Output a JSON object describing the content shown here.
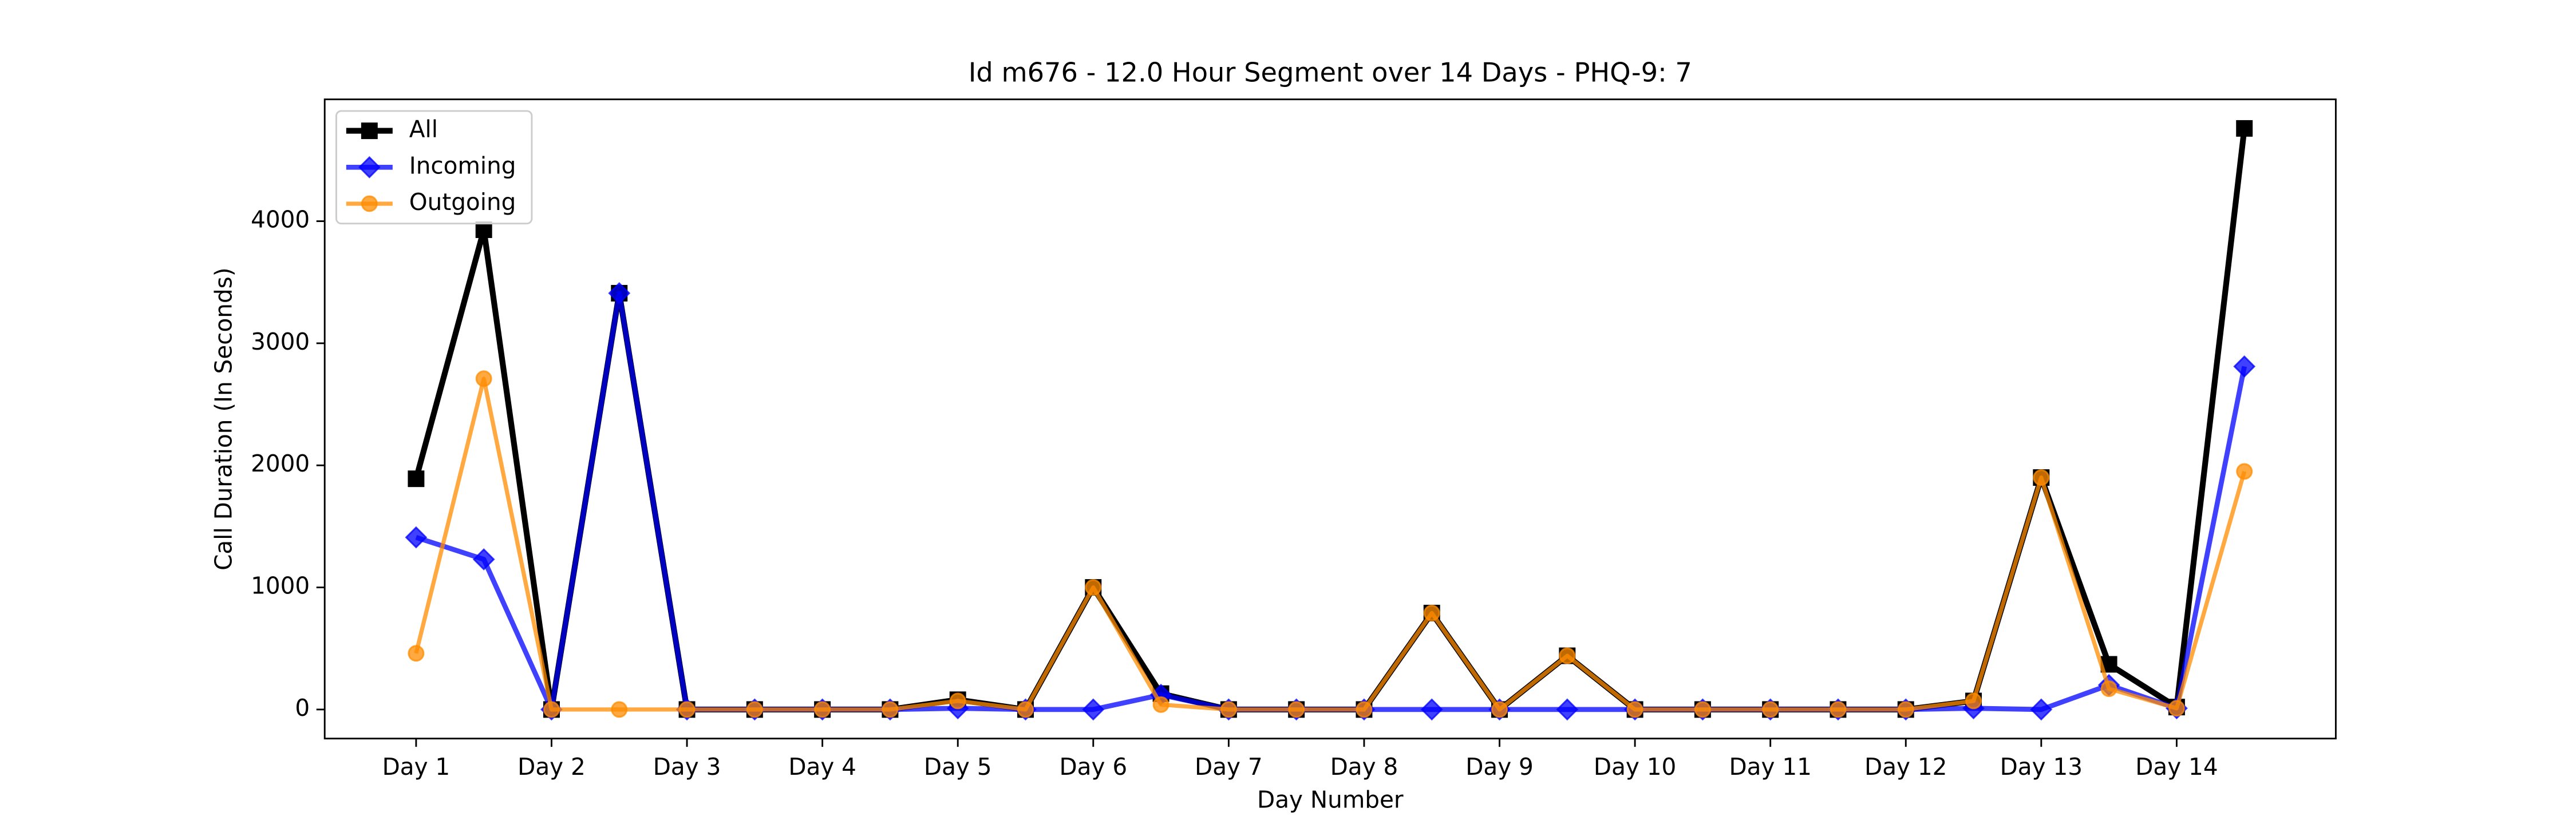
{
  "chart_data": {
    "type": "line",
    "title": "Id m676 - 12.0 Hour Segment over 14 Days - PHQ-9: 7",
    "xlabel": "Day Number",
    "ylabel": "Call Duration (In Seconds)",
    "x": [
      1,
      1.5,
      2,
      2.5,
      3,
      3.5,
      4,
      4.5,
      5,
      5.5,
      6,
      6.5,
      7,
      7.5,
      8,
      8.5,
      9,
      9.5,
      10,
      10.5,
      11,
      11.5,
      12,
      12.5,
      13,
      13.5,
      14,
      14.5
    ],
    "xlim": [
      0.325,
      15.175
    ],
    "xticks": [
      {
        "value": 1,
        "label": "Day 1"
      },
      {
        "value": 2,
        "label": "Day 2"
      },
      {
        "value": 3,
        "label": "Day 3"
      },
      {
        "value": 4,
        "label": "Day 4"
      },
      {
        "value": 5,
        "label": "Day 5"
      },
      {
        "value": 6,
        "label": "Day 6"
      },
      {
        "value": 7,
        "label": "Day 7"
      },
      {
        "value": 8,
        "label": "Day 8"
      },
      {
        "value": 9,
        "label": "Day 9"
      },
      {
        "value": 10,
        "label": "Day 10"
      },
      {
        "value": 11,
        "label": "Day 11"
      },
      {
        "value": 12,
        "label": "Day 12"
      },
      {
        "value": 13,
        "label": "Day 13"
      },
      {
        "value": 14,
        "label": "Day 14"
      }
    ],
    "ylim": [
      -238,
      4998
    ],
    "yticks": [
      0,
      1000,
      2000,
      3000,
      4000
    ],
    "legend": "upper left",
    "series": [
      {
        "name": "All",
        "color": "#000000",
        "alpha": 1,
        "marker": "square",
        "width": 3.5,
        "values": [
          1890,
          3930,
          0,
          3410,
          0,
          0,
          0,
          0,
          80,
          0,
          1000,
          130,
          0,
          0,
          0,
          790,
          0,
          440,
          0,
          0,
          0,
          0,
          0,
          70,
          1900,
          370,
          20,
          4760
        ]
      },
      {
        "name": "Incoming",
        "color": "#0000ff",
        "alpha": 0.75,
        "marker": "diamond",
        "width": 3,
        "values": [
          1410,
          1230,
          0,
          3410,
          0,
          0,
          0,
          0,
          10,
          0,
          0,
          120,
          0,
          0,
          0,
          0,
          0,
          0,
          0,
          0,
          0,
          0,
          0,
          10,
          0,
          200,
          10,
          2810
        ]
      },
      {
        "name": "Outgoing",
        "color": "#ff8c00",
        "alpha": 0.75,
        "marker": "circle",
        "width": 2.5,
        "values": [
          460,
          2710,
          0,
          0,
          0,
          0,
          0,
          0,
          70,
          0,
          1000,
          40,
          0,
          0,
          0,
          790,
          0,
          440,
          0,
          0,
          0,
          0,
          0,
          70,
          1900,
          170,
          10,
          1950
        ]
      }
    ]
  }
}
